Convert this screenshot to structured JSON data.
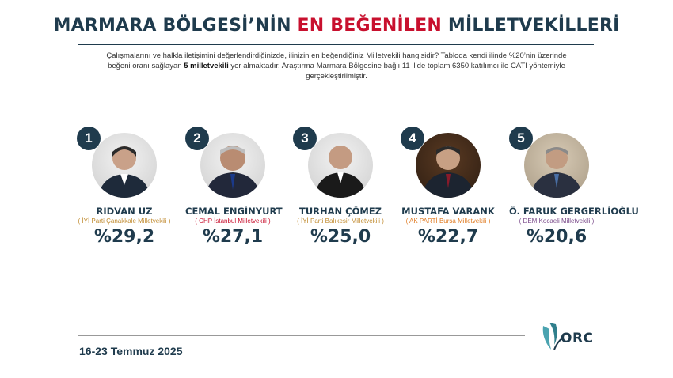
{
  "header": {
    "title_part1": "MARMARA BÖLGESİ’NİN ",
    "title_highlight": "EN BEĞENİLEN",
    "title_part2": " MİLLETVEKİLLERİ",
    "intro_line1": "Çalışmalarını ve halkla iletişimini değerlendirdiğinizde, ilinizin en beğendiğiniz Milletvekili hangisidir? Tabloda kendi ilinde %20’nin üzerinde",
    "intro_line2_before": "beğeni oranı sağlayan ",
    "intro_line2_bold": "5 milletvekili",
    "intro_line2_after": " yer almaktadır. Araştırma Marmara Bölgesine bağlı 11 il’de toplam 6350 katılımcı ile CATI yöntemiyle gerçekleştirilmiştir."
  },
  "candidates": [
    {
      "rank": "1",
      "name": "RIDVAN UZ",
      "party": "( İYİ Parti Çanakkale Milletvekili )",
      "party_color": "#c08a2e",
      "percent": "%29,2"
    },
    {
      "rank": "2",
      "name": "CEMAL ENGİNYURT",
      "party": "( CHP İstanbul Milletvekili )",
      "party_color": "#c8102e",
      "percent": "%27,1"
    },
    {
      "rank": "3",
      "name": "TURHAN ÇÖMEZ",
      "party": "( İYİ Parti Balıkesir Milletvekili )",
      "party_color": "#c08a2e",
      "percent": "%25,0"
    },
    {
      "rank": "4",
      "name": "MUSTAFA VARANK",
      "party": "( AK PARTİ Bursa Milletvekili )",
      "party_color": "#e07b22",
      "percent": "%22,7"
    },
    {
      "rank": "5",
      "name": "Ö. FARUK GERGERLİOĞLU",
      "party": "( DEM Kocaeli Milletvekili )",
      "party_color": "#7a4a8a",
      "percent": "%20,6"
    }
  ],
  "footer": {
    "date": "16-23 Temmuz 2025",
    "logo_text": "ORC"
  },
  "colors": {
    "primary": "#1f3b4d",
    "accent": "#c8102e",
    "logo_teal": "#4aa3b0"
  }
}
